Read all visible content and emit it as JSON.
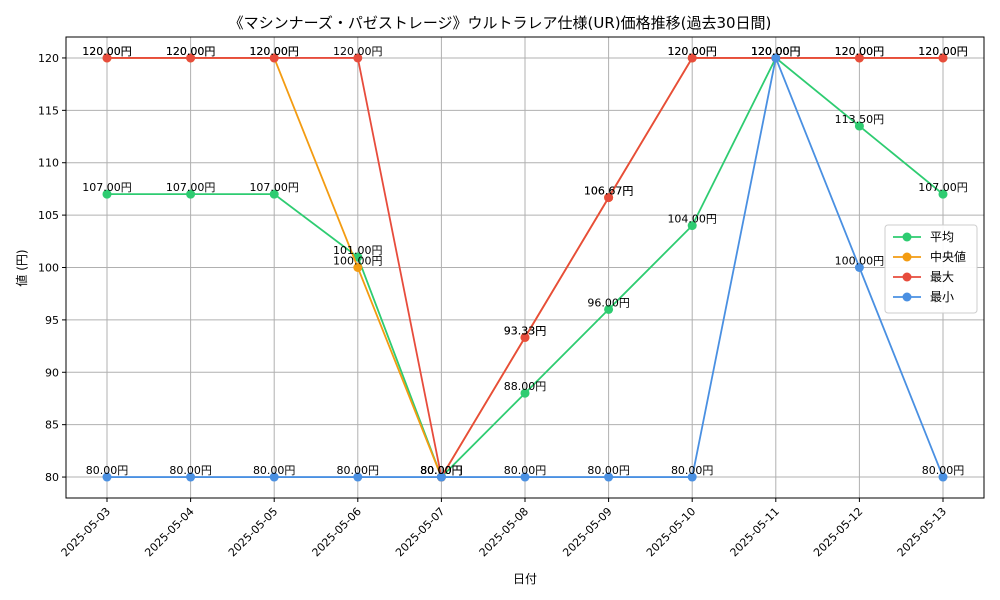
{
  "chart_data": {
    "type": "line",
    "title": "《マシンナーズ・パゼストレージ》ウルトラレア仕様(UR)価格推移(過去30日間)",
    "xlabel": "日付",
    "ylabel": "値 (円)",
    "ylim": [
      78,
      122
    ],
    "yticks": [
      80,
      85,
      90,
      95,
      100,
      105,
      110,
      115,
      120
    ],
    "yticklabels": [
      "80",
      "85",
      "90",
      "95",
      "100",
      "105",
      "110",
      "115",
      "120"
    ],
    "grid": true,
    "legend_position": "center-right",
    "label_suffix": "円",
    "categories": [
      "2025-05-03",
      "2025-05-04",
      "2025-05-05",
      "2025-05-06",
      "2025-05-07",
      "2025-05-08",
      "2025-05-09",
      "2025-05-10",
      "2025-05-11",
      "2025-05-12",
      "2025-05-13"
    ],
    "series": [
      {
        "name": "平均",
        "color": "#2ecc71",
        "values": [
          107,
          107,
          107,
          101,
          80,
          88,
          96,
          104,
          120,
          113.5,
          107
        ],
        "labels": [
          "107.00円",
          "107.00円",
          "107.00円",
          "101.00円",
          "80.00円",
          "88.00円",
          "96.00円",
          "104.00円",
          "120.00円",
          "113.50円",
          "107.00円"
        ]
      },
      {
        "name": "中央値",
        "color": "#f39c12",
        "values": [
          120,
          120,
          120,
          100,
          80,
          93.33,
          106.67,
          120,
          120,
          120,
          120
        ],
        "labels": [
          "120.00円",
          "120.00円",
          "120.00円",
          "100.00円",
          "80.00円",
          "93.33円",
          "106.67円",
          "120.00円",
          "120.00円",
          "120.00円",
          "120.00円"
        ]
      },
      {
        "name": "最大",
        "color": "#e74c3c",
        "values": [
          120,
          120,
          120,
          120,
          80,
          93.33,
          106.67,
          120,
          120,
          120,
          120
        ],
        "labels": [
          "120.00円",
          "120.00円",
          "120.00円",
          "120.00円",
          "80.00円",
          "93.33円",
          "106.67円",
          "120.00円",
          "120.00円",
          "120.00円",
          "120.00円"
        ]
      },
      {
        "name": "最小",
        "color": "#4a90e2",
        "values": [
          80,
          80,
          80,
          80,
          80,
          80,
          80,
          80,
          120,
          100,
          80
        ],
        "labels": [
          "80.00円",
          "80.00円",
          "80.00円",
          "80.00円",
          "80.00円",
          "80.00円",
          "80.00円",
          "80.00円",
          "120.00円",
          "100.00円",
          "80.00円"
        ]
      }
    ]
  }
}
